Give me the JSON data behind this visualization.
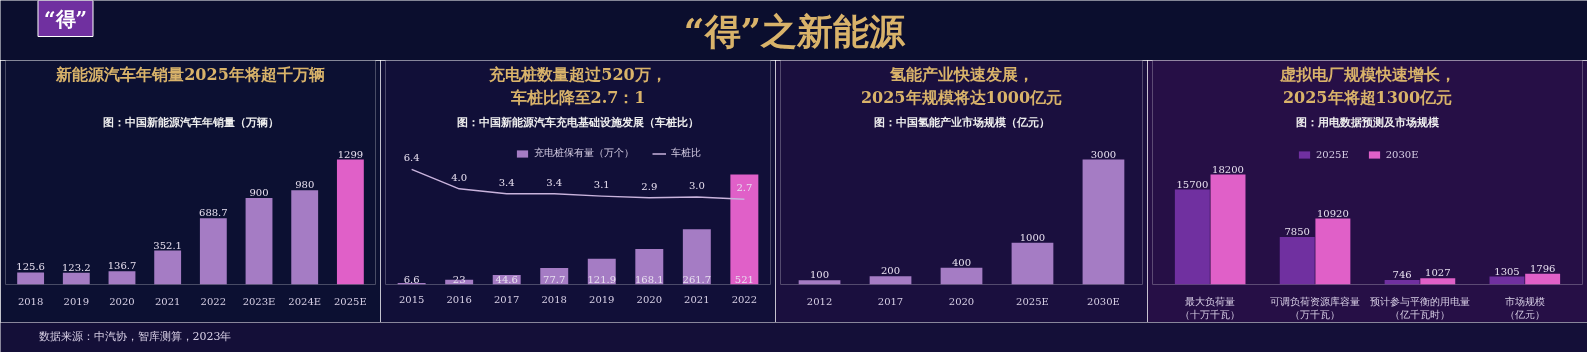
{
  "chart_data": [
    {
      "type": "bar",
      "title": "新能源汽车年销量2025年将超千万辆",
      "subtitle": "图：中国新能源汽车年销量（万辆）",
      "categories": [
        "2018",
        "2019",
        "2020",
        "2021",
        "2022",
        "2023E",
        "2024E",
        "2025E"
      ],
      "values": [
        125.6,
        123.2,
        136.7,
        352.1,
        688.7,
        900,
        980,
        1299
      ],
      "colors": [
        "#a57cc4",
        "#a57cc4",
        "#a57cc4",
        "#a57cc4",
        "#a57cc4",
        "#a57cc4",
        "#a57cc4",
        "#e060c8"
      ],
      "data_labels": true,
      "tick_labels": "x",
      "annotations": [
        "“得”",
        "“得”之新能源",
        "数据来源：中汽协，智库测算，2023年"
      ]
    },
    {
      "type": "bar",
      "title": "充电桩数量超过520万，车桩比降至2.7：1",
      "subtitle": "图：中国新能源汽车充电基础设施发展（车桩比）",
      "categories": [
        "2015",
        "2016",
        "2017",
        "2018",
        "2019",
        "2020",
        "2021",
        "2022"
      ],
      "series": [
        {
          "name": "充电桩保有量（万个）",
          "type": "bar",
          "colors": [
            "#a57cc4",
            "#a57cc4",
            "#a57cc4",
            "#a57cc4",
            "#a57cc4",
            "#a57cc4",
            "#a57cc4",
            "#e060c8"
          ],
          "values": [
            6.6,
            23,
            44.6,
            77.7,
            121.9,
            168.1,
            261.7,
            521
          ]
        },
        {
          "name": "车桩比",
          "type": "line",
          "axis": "y2",
          "color": "#c9b3dc",
          "values": [
            6.4,
            4.0,
            3.4,
            3.4,
            3.1,
            2.9,
            3.0,
            2.7
          ],
          "value_labels": [
            "6.4",
            "4.0",
            "3.4",
            "3.4",
            "3.1",
            "2.9",
            "3.0",
            "2.7"
          ]
        }
      ],
      "data_labels": true,
      "tick_labels": "x",
      "legend": "top"
    },
    {
      "type": "bar",
      "title": "氢能产业快速发展，2025年规模将达1000亿元",
      "subtitle": "图：中国氢能产业市场规模（亿元）",
      "categories": [
        "2012",
        "2017",
        "2020",
        "2025E",
        "2030E"
      ],
      "values": [
        100,
        200,
        400,
        1000,
        3000
      ],
      "colors": [
        "#a57cc4",
        "#a57cc4",
        "#a57cc4",
        "#a57cc4",
        "#a57cc4"
      ],
      "data_labels": true,
      "tick_labels": "x"
    },
    {
      "type": "bar",
      "title": "虚拟电厂规模快速增长，2025年将超1300亿元",
      "subtitle": "图：用电数据预测及市场规模",
      "categories": [
        "最大负荷量（十万千瓦）",
        "可调负荷资源库容量（万千瓦）",
        "预计参与平衡的用电量（亿千瓦时）",
        "市场规模（亿元）"
      ],
      "series": [
        {
          "name": "2025E",
          "color": "#7030a0",
          "values": [
            15700,
            7850,
            746,
            1305
          ]
        },
        {
          "name": "2030E",
          "color": "#e060c8",
          "values": [
            18200,
            10920,
            1027,
            1796
          ]
        }
      ],
      "data_labels": true,
      "tick_labels": "x",
      "legend": "top"
    }
  ]
}
